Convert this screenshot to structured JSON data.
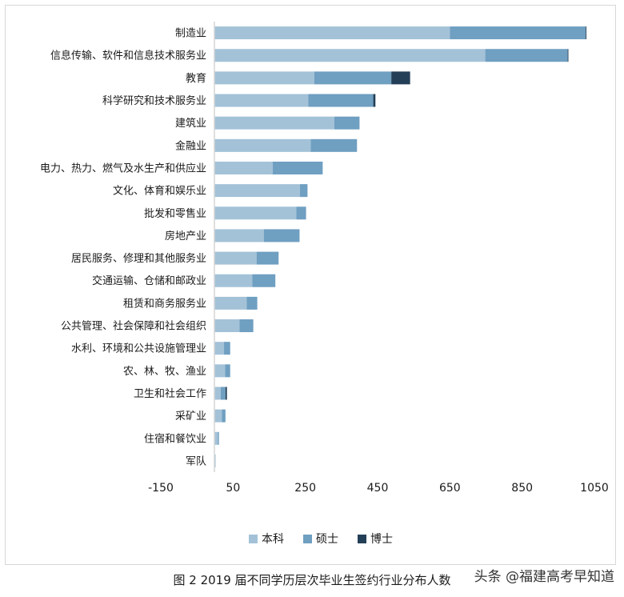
{
  "chart_data": {
    "type": "bar",
    "orientation": "horizontal",
    "stacked": true,
    "title": "",
    "xlabel": "",
    "ylabel": "",
    "xlim": [
      -150,
      1050
    ],
    "xticks": [
      -150,
      50,
      250,
      450,
      650,
      850,
      1050
    ],
    "grid": false,
    "legend_position": "bottom",
    "categories": [
      "制造业",
      "信息传输、软件和信息技术服务业",
      "教育",
      "科学研究和技术服务业",
      "建筑业",
      "金融业",
      "电力、热力、燃气及水生产和供应业",
      "文化、体育和娱乐业",
      "批发和零售业",
      "房地产业",
      "居民服务、修理和其他服务业",
      "交通运输、仓储和邮政业",
      "租赁和商务服务业",
      "公共管理、社会保障和社会组织",
      "水利、环境和公共设施管理业",
      "农、林、牧、渔业",
      "卫生和社会工作",
      "采矿业",
      "住宿和餐饮业",
      "军队"
    ],
    "series": [
      {
        "name": "本科",
        "color": "#a3c2d8",
        "values": [
          650,
          748,
          275,
          258,
          330,
          265,
          160,
          235,
          225,
          135,
          115,
          103,
          88,
          68,
          25,
          28,
          16,
          19,
          8,
          1
        ]
      },
      {
        "name": "硕士",
        "color": "#6f9fc1",
        "values": [
          376,
          228,
          213,
          180,
          70,
          128,
          138,
          21,
          27,
          99,
          61,
          64,
          29,
          38,
          17,
          14,
          13,
          10,
          3,
          0
        ]
      },
      {
        "name": "博士",
        "color": "#233f57",
        "values": [
          2,
          2,
          52,
          6,
          0,
          0,
          0,
          0,
          0,
          0,
          0,
          0,
          0,
          0,
          0,
          0,
          4,
          0,
          0,
          0
        ]
      }
    ]
  },
  "caption": "图 2 2019 届不同学历层次毕业生签约行业分布人数",
  "watermark": {
    "text": "头条 @福建高考早知道"
  }
}
